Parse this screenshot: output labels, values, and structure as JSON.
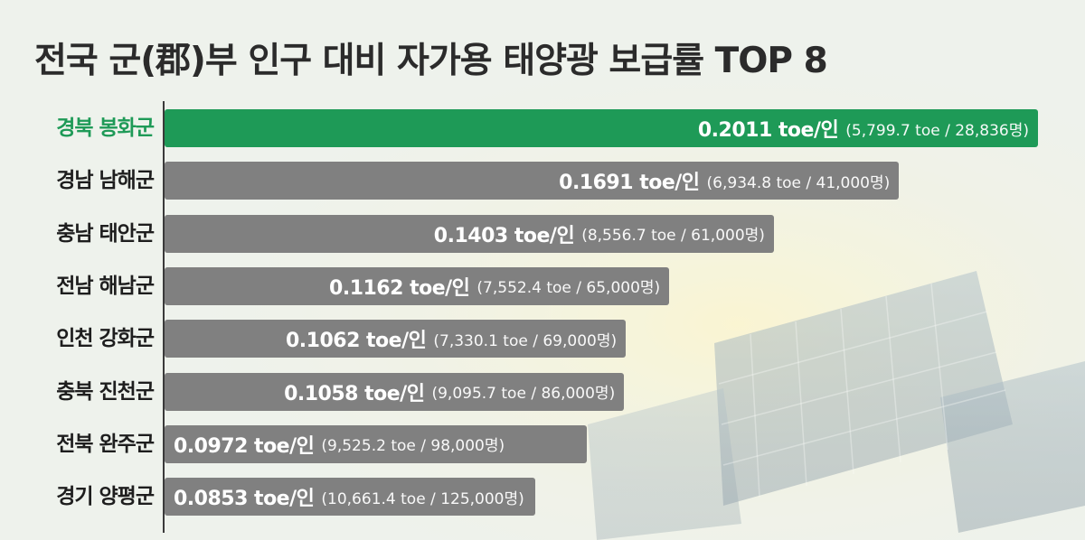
{
  "title": "전국 군(郡)부 인구 대비 자가용 태양광 보급률 TOP 8",
  "colors": {
    "highlight": "#1e9a57",
    "bar": "#808080",
    "text": "#1e1e1e"
  },
  "chart_data": {
    "type": "bar",
    "orientation": "horizontal",
    "title": "전국 군(郡)부 인구 대비 자가용 태양광 보급률 TOP 8",
    "xlabel": "",
    "ylabel": "",
    "unit": "toe/인",
    "categories": [
      "경북 봉화군",
      "경남 남해군",
      "충남 태안군",
      "전남 해남군",
      "인천 강화군",
      "충북 진천군",
      "전북 완주군",
      "경기 양평군"
    ],
    "values": [
      0.2011,
      0.1691,
      0.1403,
      0.1162,
      0.1062,
      0.1058,
      0.0972,
      0.0853
    ],
    "value_labels": [
      "0.2011 toe/인",
      "0.1691 toe/인",
      "0.1403 toe/인",
      "0.1162 toe/인",
      "0.1062 toe/인",
      "0.1058 toe/인",
      "0.0972 toe/인",
      "0.0853 toe/인"
    ],
    "details": [
      "(5,799.7 toe / 28,836명)",
      "(6,934.8 toe / 41,000명)",
      "(8,556.7 toe / 61,000명)",
      "(7,552.4 toe / 65,000명)",
      "(7,330.1 toe / 69,000명)",
      "(9,095.7 toe / 86,000명)",
      "(9,525.2 toe / 98,000명)",
      "(10,661.4 toe / 125,000명)"
    ],
    "highlight_index": 0,
    "grid": false,
    "legend": "none"
  }
}
